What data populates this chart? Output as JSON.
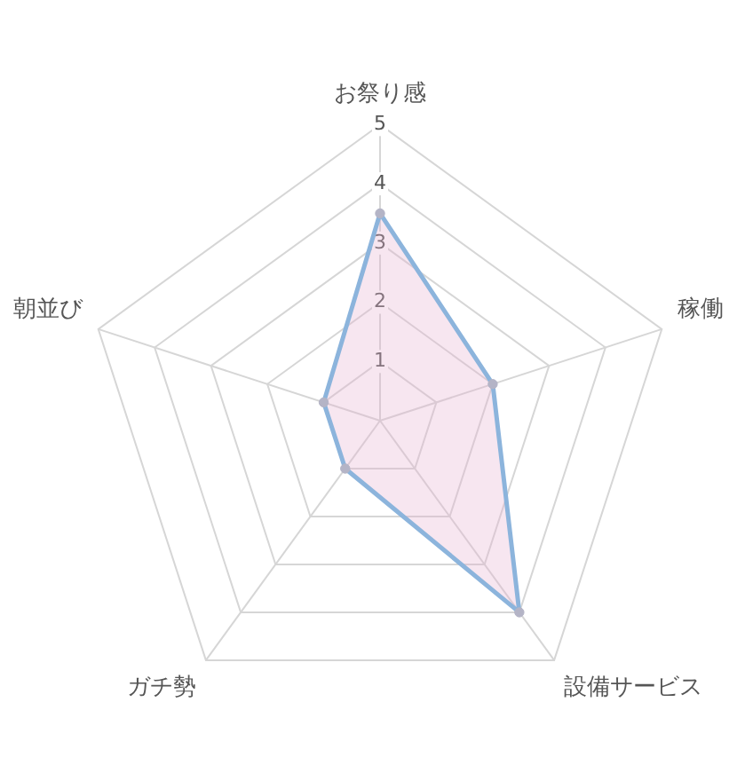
{
  "chart_data": {
    "type": "radar",
    "categories": [
      "お祭り感",
      "稼働",
      "設備サービス",
      "ガチ勢",
      "朝並び"
    ],
    "series": [
      {
        "color": "#8cb4dc",
        "values": [
          3.5,
          2,
          4,
          1,
          1
        ]
      }
    ],
    "ylim": [
      0,
      5
    ],
    "yticks": [
      1,
      2,
      3,
      4,
      5
    ],
    "grid": true,
    "legend": false,
    "marker": "circle"
  }
}
